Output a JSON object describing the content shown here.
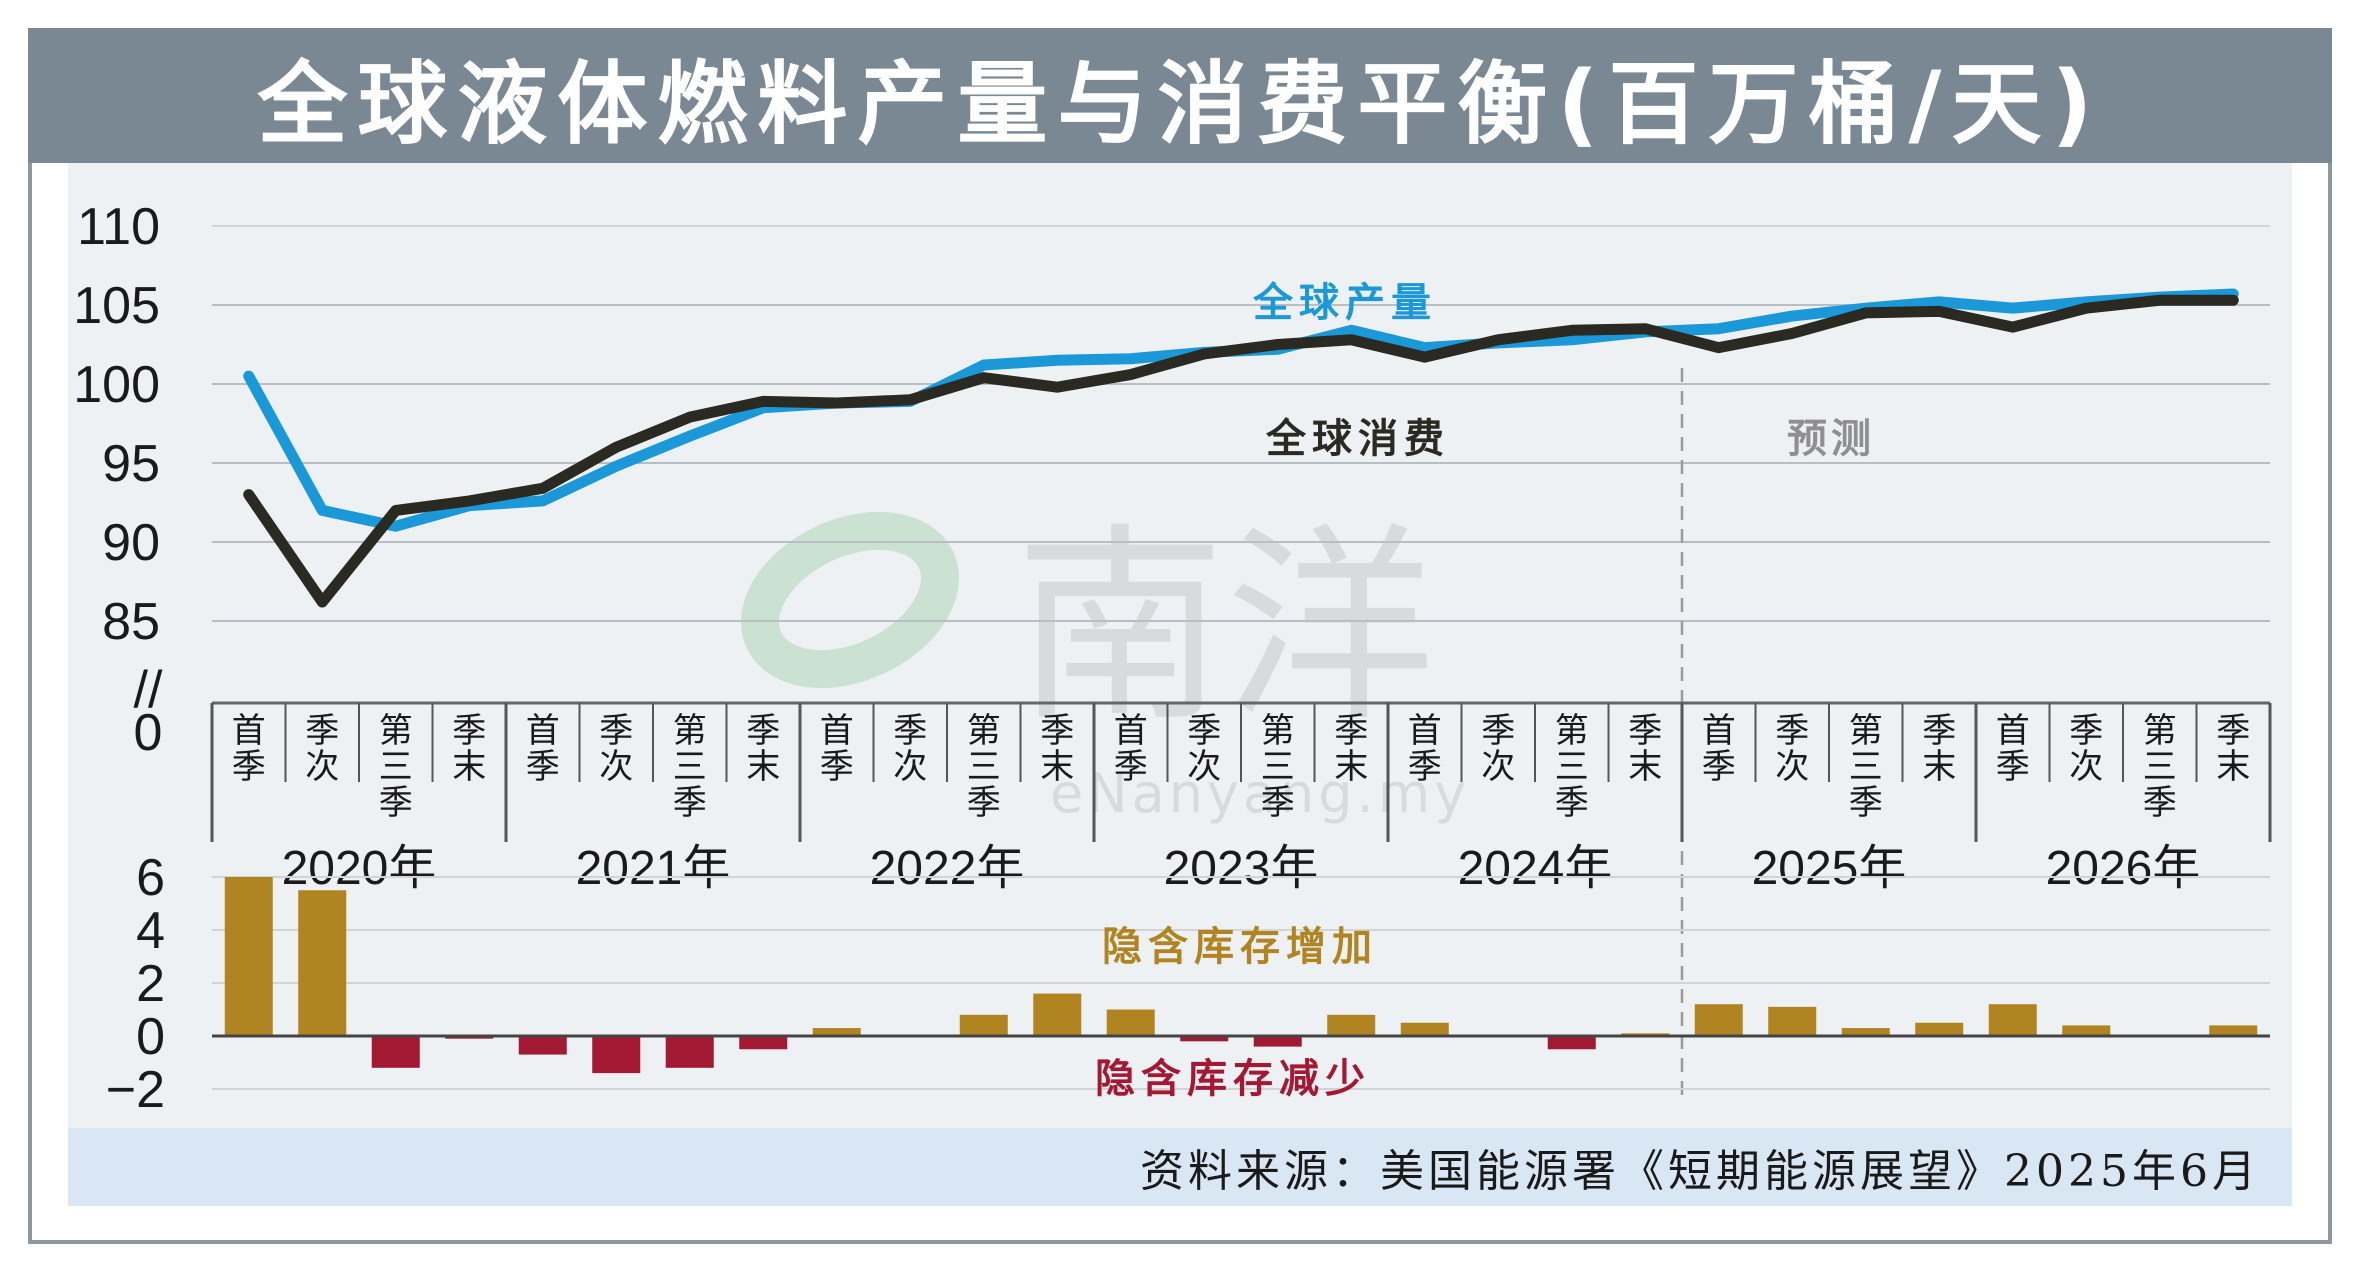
{
  "title": "全球液体燃料产量与消费平衡(百万桶/天)",
  "source": "资料来源：美国能源署《短期能源展望》2025年6月",
  "watermark": {
    "mark": "南洋",
    "site": "eNanyang.my"
  },
  "colors": {
    "production": "#1b98d8",
    "consumption": "#2a2a22",
    "increase": "#b08420",
    "decrease": "#a31833",
    "title_bar": "#7a8893",
    "forecast_label": "#8f8f8f"
  },
  "chart_data": [
    {
      "type": "line",
      "title": "全球液体燃料产量与消费平衡(百万桶/天)",
      "ylim": [
        85,
        110
      ],
      "yticks": [
        "110",
        "105",
        "100",
        "95",
        "90",
        "85",
        "0"
      ],
      "axis_break": "//",
      "grid": true,
      "quarter_labels": [
        "首季",
        "季次",
        "第三季",
        "季末"
      ],
      "years": [
        "2020年",
        "2021年",
        "2022年",
        "2023年",
        "2024年",
        "2025年",
        "2026年"
      ],
      "forecast_label": "预测",
      "forecast_start_index": 20,
      "series": [
        {
          "name": "全球产量",
          "values": [
            100.5,
            92.0,
            91.0,
            92.3,
            92.6,
            94.8,
            96.7,
            98.5,
            98.8,
            98.9,
            101.2,
            101.5,
            101.6,
            102.0,
            102.2,
            103.4,
            102.3,
            102.6,
            102.8,
            103.3,
            103.5,
            104.3,
            104.8,
            105.2,
            104.8,
            105.2,
            105.5,
            105.7
          ]
        },
        {
          "name": "全球消费",
          "values": [
            93.0,
            86.2,
            92.0,
            92.6,
            93.4,
            96.0,
            97.9,
            98.9,
            98.8,
            99.0,
            100.4,
            99.8,
            100.6,
            101.9,
            102.5,
            102.8,
            101.7,
            102.8,
            103.4,
            103.5,
            102.3,
            103.2,
            104.5,
            104.6,
            103.6,
            104.8,
            105.3,
            105.3
          ]
        }
      ]
    },
    {
      "type": "bar",
      "ylim": [
        -2,
        6
      ],
      "yticks": [
        "6",
        "4",
        "2",
        "0",
        "−2"
      ],
      "annotation_increase": "隐含库存增加",
      "annotation_decrease": "隐含库存减少",
      "values": [
        6.0,
        5.5,
        -1.2,
        -0.1,
        -0.7,
        -1.4,
        -1.2,
        -0.5,
        0.3,
        0.0,
        0.8,
        1.6,
        1.0,
        -0.2,
        -0.4,
        0.8,
        0.5,
        0.0,
        -0.5,
        0.1,
        1.2,
        1.1,
        0.3,
        0.5,
        1.2,
        0.4,
        0.0,
        0.4
      ]
    }
  ]
}
